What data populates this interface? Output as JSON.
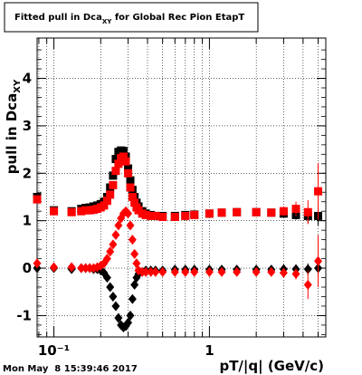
{
  "chart_data": {
    "type": "scatter",
    "title_main": "Fitted pull in Dca",
    "title_sub": "XY",
    "title_rest": " for Global Rec Pion EtapT",
    "ylabel_main": "pull in Dca",
    "ylabel_sub": "XY",
    "xlabel": "pT/|q| (GeV/c)",
    "datestamp": "Mon May  8 15:39:46 2017",
    "x_log": true,
    "xlim": [
      0.078,
      5.6
    ],
    "ylim": [
      -1.45,
      4.85
    ],
    "y_ticks": [
      "-1",
      "0",
      "1",
      "2",
      "3",
      "4"
    ],
    "x_tick_labels": [
      "10⁻¹",
      "1"
    ],
    "grid": true,
    "series": [
      {
        "color": "#000000",
        "marker": "square",
        "x": [
          0.075,
          0.1,
          0.13,
          0.15,
          0.16,
          0.17,
          0.18,
          0.19,
          0.2,
          0.21,
          0.22,
          0.23,
          0.24,
          0.25,
          0.26,
          0.27,
          0.28,
          0.29,
          0.3,
          0.31,
          0.32,
          0.33,
          0.34,
          0.35,
          0.37,
          0.39,
          0.42,
          0.45,
          0.5,
          0.6,
          0.7,
          0.8,
          1.0,
          1.2,
          1.5,
          2.0,
          2.5,
          3.0,
          3.6,
          4.3,
          5.0
        ],
        "y": [
          1.5,
          1.22,
          1.2,
          1.25,
          1.27,
          1.28,
          1.3,
          1.32,
          1.35,
          1.4,
          1.5,
          1.7,
          1.95,
          2.3,
          2.45,
          2.48,
          2.47,
          2.35,
          2.1,
          1.85,
          1.65,
          1.5,
          1.38,
          1.3,
          1.2,
          1.15,
          1.12,
          1.1,
          1.1,
          1.1,
          1.12,
          1.13,
          1.15,
          1.17,
          1.18,
          1.18,
          1.17,
          1.15,
          1.12,
          1.1,
          1.1
        ],
        "err": [
          0.06,
          0,
          0,
          0,
          0,
          0,
          0,
          0,
          0,
          0,
          0,
          0,
          0,
          0,
          0,
          0,
          0,
          0,
          0,
          0,
          0,
          0,
          0,
          0,
          0,
          0,
          0,
          0,
          0,
          0,
          0,
          0,
          0,
          0,
          0,
          0,
          0,
          0,
          0.1,
          0.15,
          0.2
        ]
      },
      {
        "color": "#000000",
        "marker": "diamond",
        "x": [
          0.075,
          0.1,
          0.13,
          0.15,
          0.16,
          0.17,
          0.18,
          0.19,
          0.2,
          0.21,
          0.22,
          0.23,
          0.24,
          0.25,
          0.26,
          0.27,
          0.28,
          0.29,
          0.3,
          0.31,
          0.32,
          0.33,
          0.34,
          0.35,
          0.37,
          0.39,
          0.42,
          0.45,
          0.5,
          0.6,
          0.7,
          0.8,
          1.0,
          1.2,
          1.5,
          2.0,
          2.5,
          3.0,
          3.6,
          4.3,
          5.0
        ],
        "y": [
          0.0,
          0.0,
          -0.02,
          0.0,
          0.0,
          0.0,
          -0.02,
          -0.02,
          -0.05,
          -0.1,
          -0.2,
          -0.4,
          -0.6,
          -0.8,
          -1.05,
          -1.2,
          -1.25,
          -1.22,
          -1.15,
          -1.0,
          -0.65,
          -0.35,
          -0.2,
          -0.12,
          -0.08,
          -0.05,
          -0.05,
          -0.05,
          -0.05,
          -0.03,
          -0.03,
          -0.03,
          -0.03,
          -0.03,
          -0.03,
          -0.03,
          -0.03,
          -0.02,
          -0.02,
          -0.02,
          0.0
        ],
        "err": [
          0.05,
          0,
          0,
          0,
          0,
          0,
          0,
          0,
          0,
          0,
          0,
          0,
          0,
          0,
          0,
          0,
          0,
          0,
          0,
          0,
          0,
          0,
          0,
          0,
          0,
          0,
          0,
          0,
          0,
          0,
          0,
          0,
          0,
          0,
          0,
          0,
          0,
          0,
          0.1,
          0.12,
          0.15
        ]
      },
      {
        "color": "#ff0000",
        "marker": "square",
        "x": [
          0.075,
          0.1,
          0.13,
          0.15,
          0.16,
          0.17,
          0.18,
          0.19,
          0.2,
          0.21,
          0.22,
          0.23,
          0.24,
          0.25,
          0.26,
          0.27,
          0.28,
          0.29,
          0.3,
          0.31,
          0.32,
          0.33,
          0.34,
          0.35,
          0.37,
          0.39,
          0.42,
          0.45,
          0.5,
          0.6,
          0.7,
          0.8,
          1.0,
          1.2,
          1.5,
          2.0,
          2.5,
          3.0,
          3.6,
          4.3,
          5.0
        ],
        "y": [
          1.45,
          1.2,
          1.18,
          1.2,
          1.22,
          1.22,
          1.23,
          1.25,
          1.28,
          1.32,
          1.42,
          1.55,
          1.75,
          2.05,
          2.2,
          2.32,
          2.35,
          2.25,
          2.0,
          1.7,
          1.5,
          1.38,
          1.28,
          1.22,
          1.15,
          1.12,
          1.1,
          1.1,
          1.08,
          1.08,
          1.1,
          1.12,
          1.15,
          1.17,
          1.18,
          1.18,
          1.17,
          1.2,
          1.25,
          1.18,
          1.62
        ],
        "err": [
          0.08,
          0,
          0,
          0,
          0,
          0,
          0,
          0,
          0,
          0,
          0,
          0,
          0,
          0,
          0,
          0,
          0,
          0,
          0,
          0,
          0,
          0,
          0,
          0,
          0,
          0,
          0,
          0,
          0,
          0,
          0,
          0,
          0,
          0,
          0,
          0,
          0,
          0.1,
          0.15,
          0.25,
          0.6
        ]
      },
      {
        "color": "#ff0000",
        "marker": "diamond",
        "x": [
          0.075,
          0.1,
          0.13,
          0.15,
          0.16,
          0.17,
          0.18,
          0.19,
          0.2,
          0.21,
          0.22,
          0.23,
          0.24,
          0.25,
          0.26,
          0.27,
          0.28,
          0.29,
          0.3,
          0.31,
          0.32,
          0.33,
          0.34,
          0.35,
          0.37,
          0.39,
          0.42,
          0.45,
          0.5,
          0.6,
          0.7,
          0.8,
          1.0,
          1.2,
          1.5,
          2.0,
          2.5,
          3.0,
          3.6,
          4.3,
          5.0
        ],
        "y": [
          0.1,
          0.02,
          0.02,
          0.0,
          0.0,
          0.0,
          0.0,
          0.02,
          0.05,
          0.1,
          0.2,
          0.35,
          0.5,
          0.7,
          0.9,
          1.05,
          1.15,
          1.2,
          1.15,
          0.9,
          0.6,
          0.3,
          0.1,
          -0.05,
          -0.08,
          -0.08,
          -0.08,
          -0.08,
          -0.08,
          -0.08,
          -0.08,
          -0.08,
          -0.08,
          -0.08,
          -0.08,
          -0.08,
          -0.08,
          -0.1,
          -0.12,
          -0.35,
          0.15
        ],
        "err": [
          0.06,
          0,
          0,
          0,
          0,
          0,
          0,
          0,
          0,
          0,
          0,
          0,
          0,
          0,
          0,
          0,
          0,
          0,
          0,
          0,
          0,
          0,
          0,
          0,
          0,
          0,
          0,
          0,
          0,
          0,
          0,
          0,
          0,
          0,
          0,
          0,
          0,
          0.1,
          0.12,
          0.3,
          0.55
        ]
      }
    ]
  }
}
